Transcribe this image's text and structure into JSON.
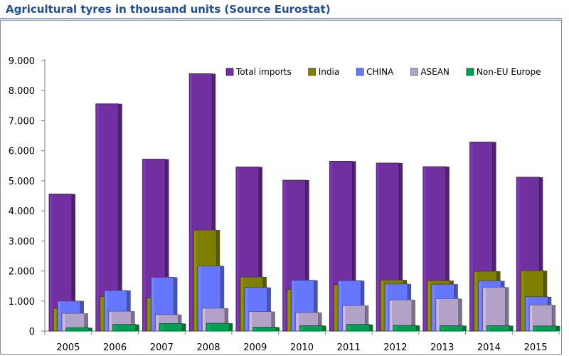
{
  "page": {
    "title": "Agricultural tyres in thousand units (Source Eurostat)"
  },
  "chart_data": {
    "type": "bar",
    "title": "Agricultural tyres in thousand units (Source Eurostat)",
    "xlabel": "",
    "ylabel": "",
    "categories": [
      "2005",
      "2006",
      "2007",
      "2008",
      "2009",
      "2010",
      "2011",
      "2012",
      "2013",
      "2014",
      "2015"
    ],
    "ylim": [
      0,
      9000
    ],
    "yticks": [
      0,
      1000,
      2000,
      3000,
      4000,
      5000,
      6000,
      7000,
      8000,
      9000
    ],
    "ytick_labels": [
      "0",
      "1.000",
      "2.000",
      "3.000",
      "4.000",
      "5.000",
      "6.000",
      "7.000",
      "8.000",
      "9.000"
    ],
    "grid": false,
    "legend_position": "top-right",
    "layout": "overlapping-depth",
    "series": [
      {
        "name": "Total imports",
        "color": "#7030a0",
        "values": [
          4560,
          7560,
          5720,
          8560,
          5460,
          5020,
          5650,
          5590,
          5470,
          6290,
          5120
        ]
      },
      {
        "name": "India",
        "color": "#7f7f00",
        "values": [
          760,
          1150,
          1110,
          3360,
          1800,
          1380,
          1540,
          1700,
          1680,
          1990,
          2010
        ]
      },
      {
        "name": "CHINA",
        "color": "#6677ff",
        "values": [
          1000,
          1350,
          1790,
          2170,
          1450,
          1690,
          1680,
          1570,
          1560,
          1670,
          1140
        ]
      },
      {
        "name": "ASEAN",
        "color": "#b3a2c7",
        "values": [
          590,
          660,
          550,
          760,
          650,
          620,
          850,
          1040,
          1080,
          1460,
          870
        ]
      },
      {
        "name": "Non-EU Europe",
        "color": "#00a050",
        "values": [
          110,
          220,
          250,
          260,
          130,
          180,
          220,
          190,
          180,
          180,
          170
        ]
      }
    ]
  }
}
